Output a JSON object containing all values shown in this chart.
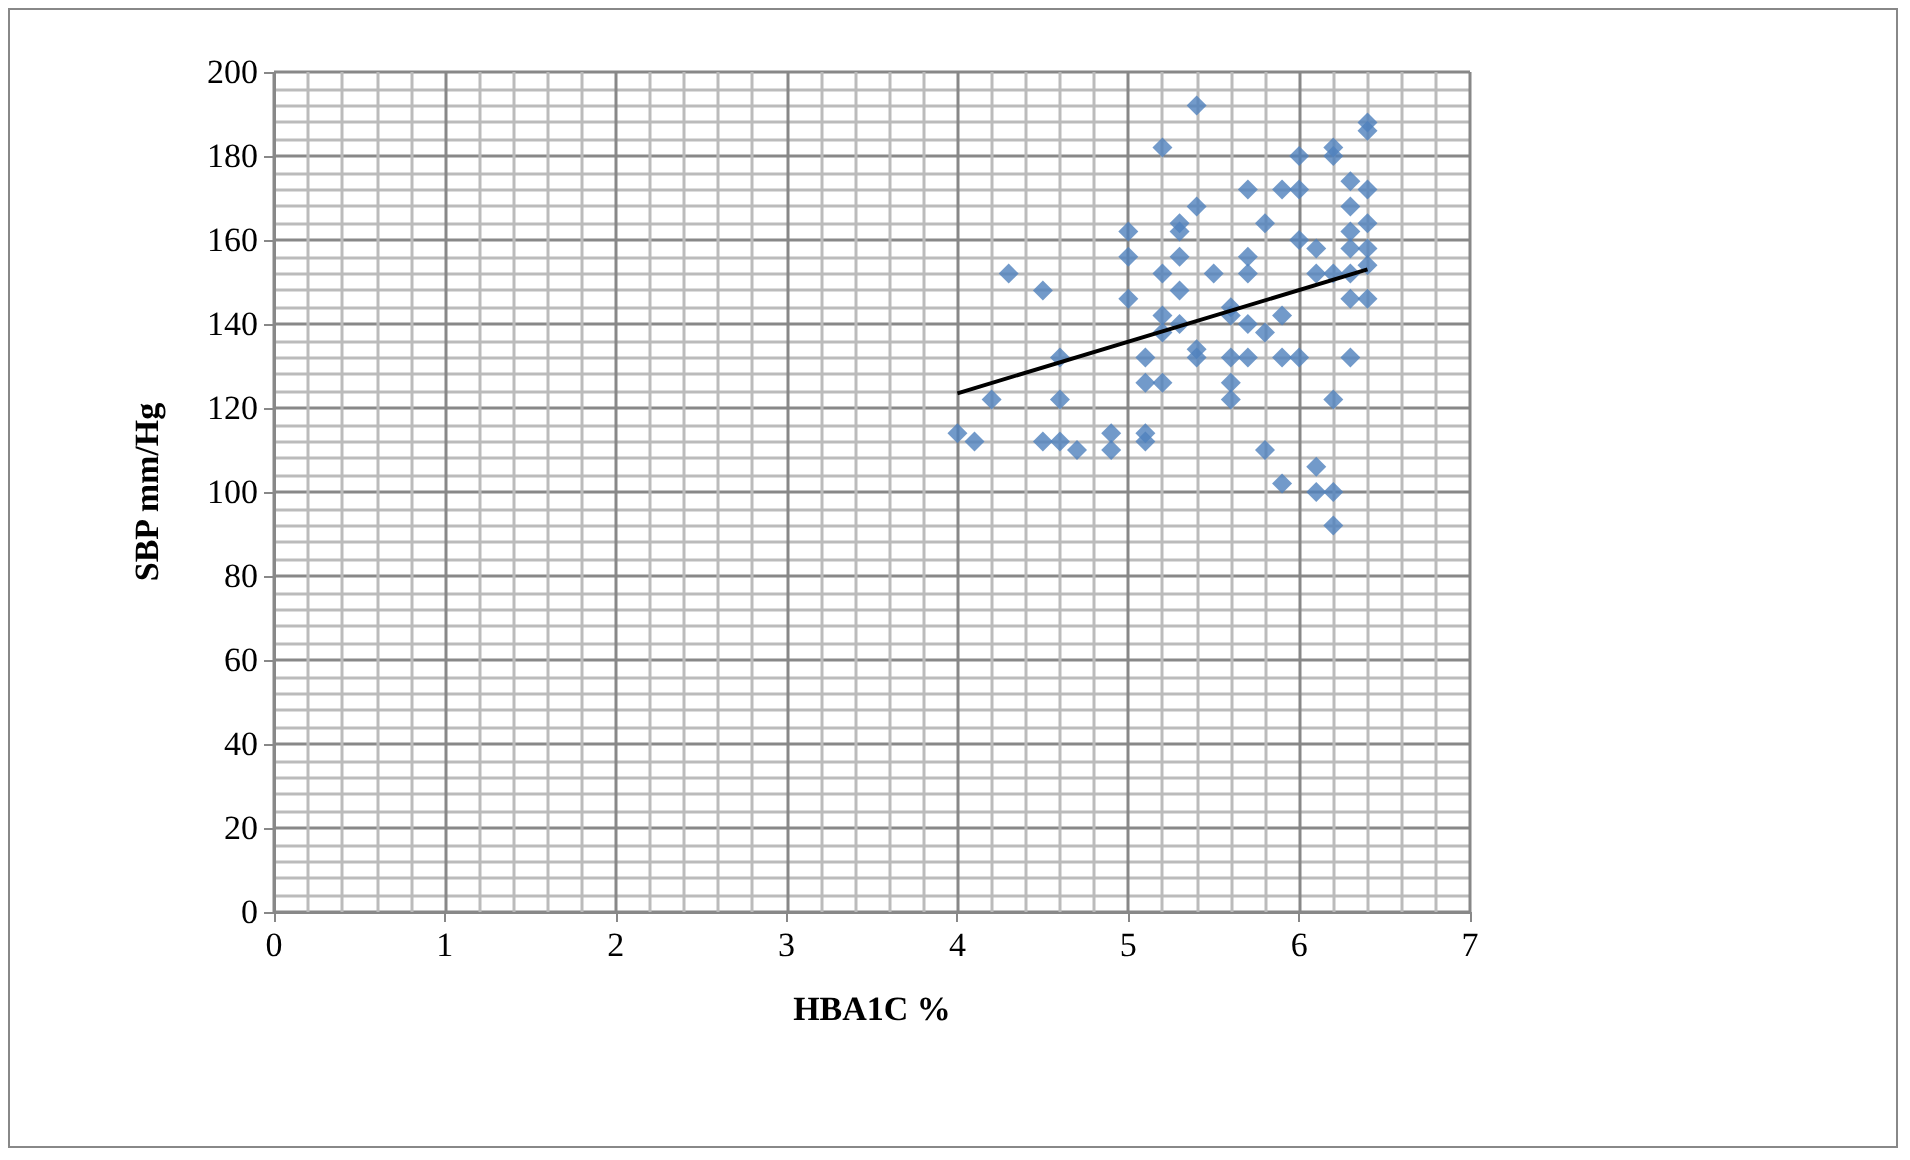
{
  "chart_data": {
    "type": "scatter",
    "xlabel": "HBA1C %",
    "ylabel": "SBP mm/Hg",
    "xlim": [
      0,
      7
    ],
    "xticks": [
      0,
      1,
      2,
      3,
      4,
      5,
      6,
      7
    ],
    "ylim": [
      0,
      200
    ],
    "yticks": [
      0,
      20,
      40,
      60,
      80,
      100,
      120,
      140,
      160,
      180,
      200
    ],
    "grid": true,
    "marker": "diamond",
    "series": [
      {
        "color": "#4f81bd",
        "x": [
          4.0,
          4.1,
          4.2,
          4.3,
          4.5,
          4.5,
          4.6,
          4.6,
          4.6,
          4.7,
          4.9,
          4.9,
          5.0,
          5.0,
          5.0,
          5.1,
          5.1,
          5.1,
          5.1,
          5.2,
          5.2,
          5.2,
          5.2,
          5.2,
          5.3,
          5.3,
          5.3,
          5.3,
          5.3,
          5.4,
          5.4,
          5.4,
          5.4,
          5.5,
          5.6,
          5.6,
          5.6,
          5.6,
          5.6,
          5.7,
          5.7,
          5.7,
          5.7,
          5.7,
          5.8,
          5.8,
          5.8,
          5.9,
          5.9,
          5.9,
          5.9,
          6.0,
          6.0,
          6.0,
          6.0,
          6.1,
          6.1,
          6.1,
          6.1,
          6.2,
          6.2,
          6.2,
          6.2,
          6.2,
          6.2,
          6.3,
          6.3,
          6.3,
          6.3,
          6.3,
          6.3,
          6.3,
          6.4,
          6.4,
          6.4,
          6.4,
          6.4,
          6.4,
          6.4
        ],
        "values": [
          114,
          112,
          122,
          152,
          148,
          112,
          132,
          122,
          112,
          110,
          114,
          110,
          162,
          156,
          146,
          132,
          126,
          114,
          112,
          182,
          152,
          142,
          138,
          126,
          164,
          162,
          156,
          148,
          140,
          192,
          168,
          134,
          132,
          152,
          144,
          142,
          132,
          126,
          122,
          172,
          156,
          152,
          140,
          132,
          164,
          138,
          110,
          172,
          142,
          132,
          102,
          180,
          172,
          160,
          132,
          158,
          152,
          106,
          100,
          182,
          180,
          152,
          122,
          100,
          92,
          174,
          168,
          162,
          158,
          152,
          146,
          132,
          188,
          186,
          172,
          164,
          158,
          154,
          146
        ]
      },
      {
        "type": "line",
        "color": "#000000",
        "marker": "none",
        "x": [
          4.0,
          6.4
        ],
        "values": [
          123.5,
          153
        ]
      }
    ]
  }
}
